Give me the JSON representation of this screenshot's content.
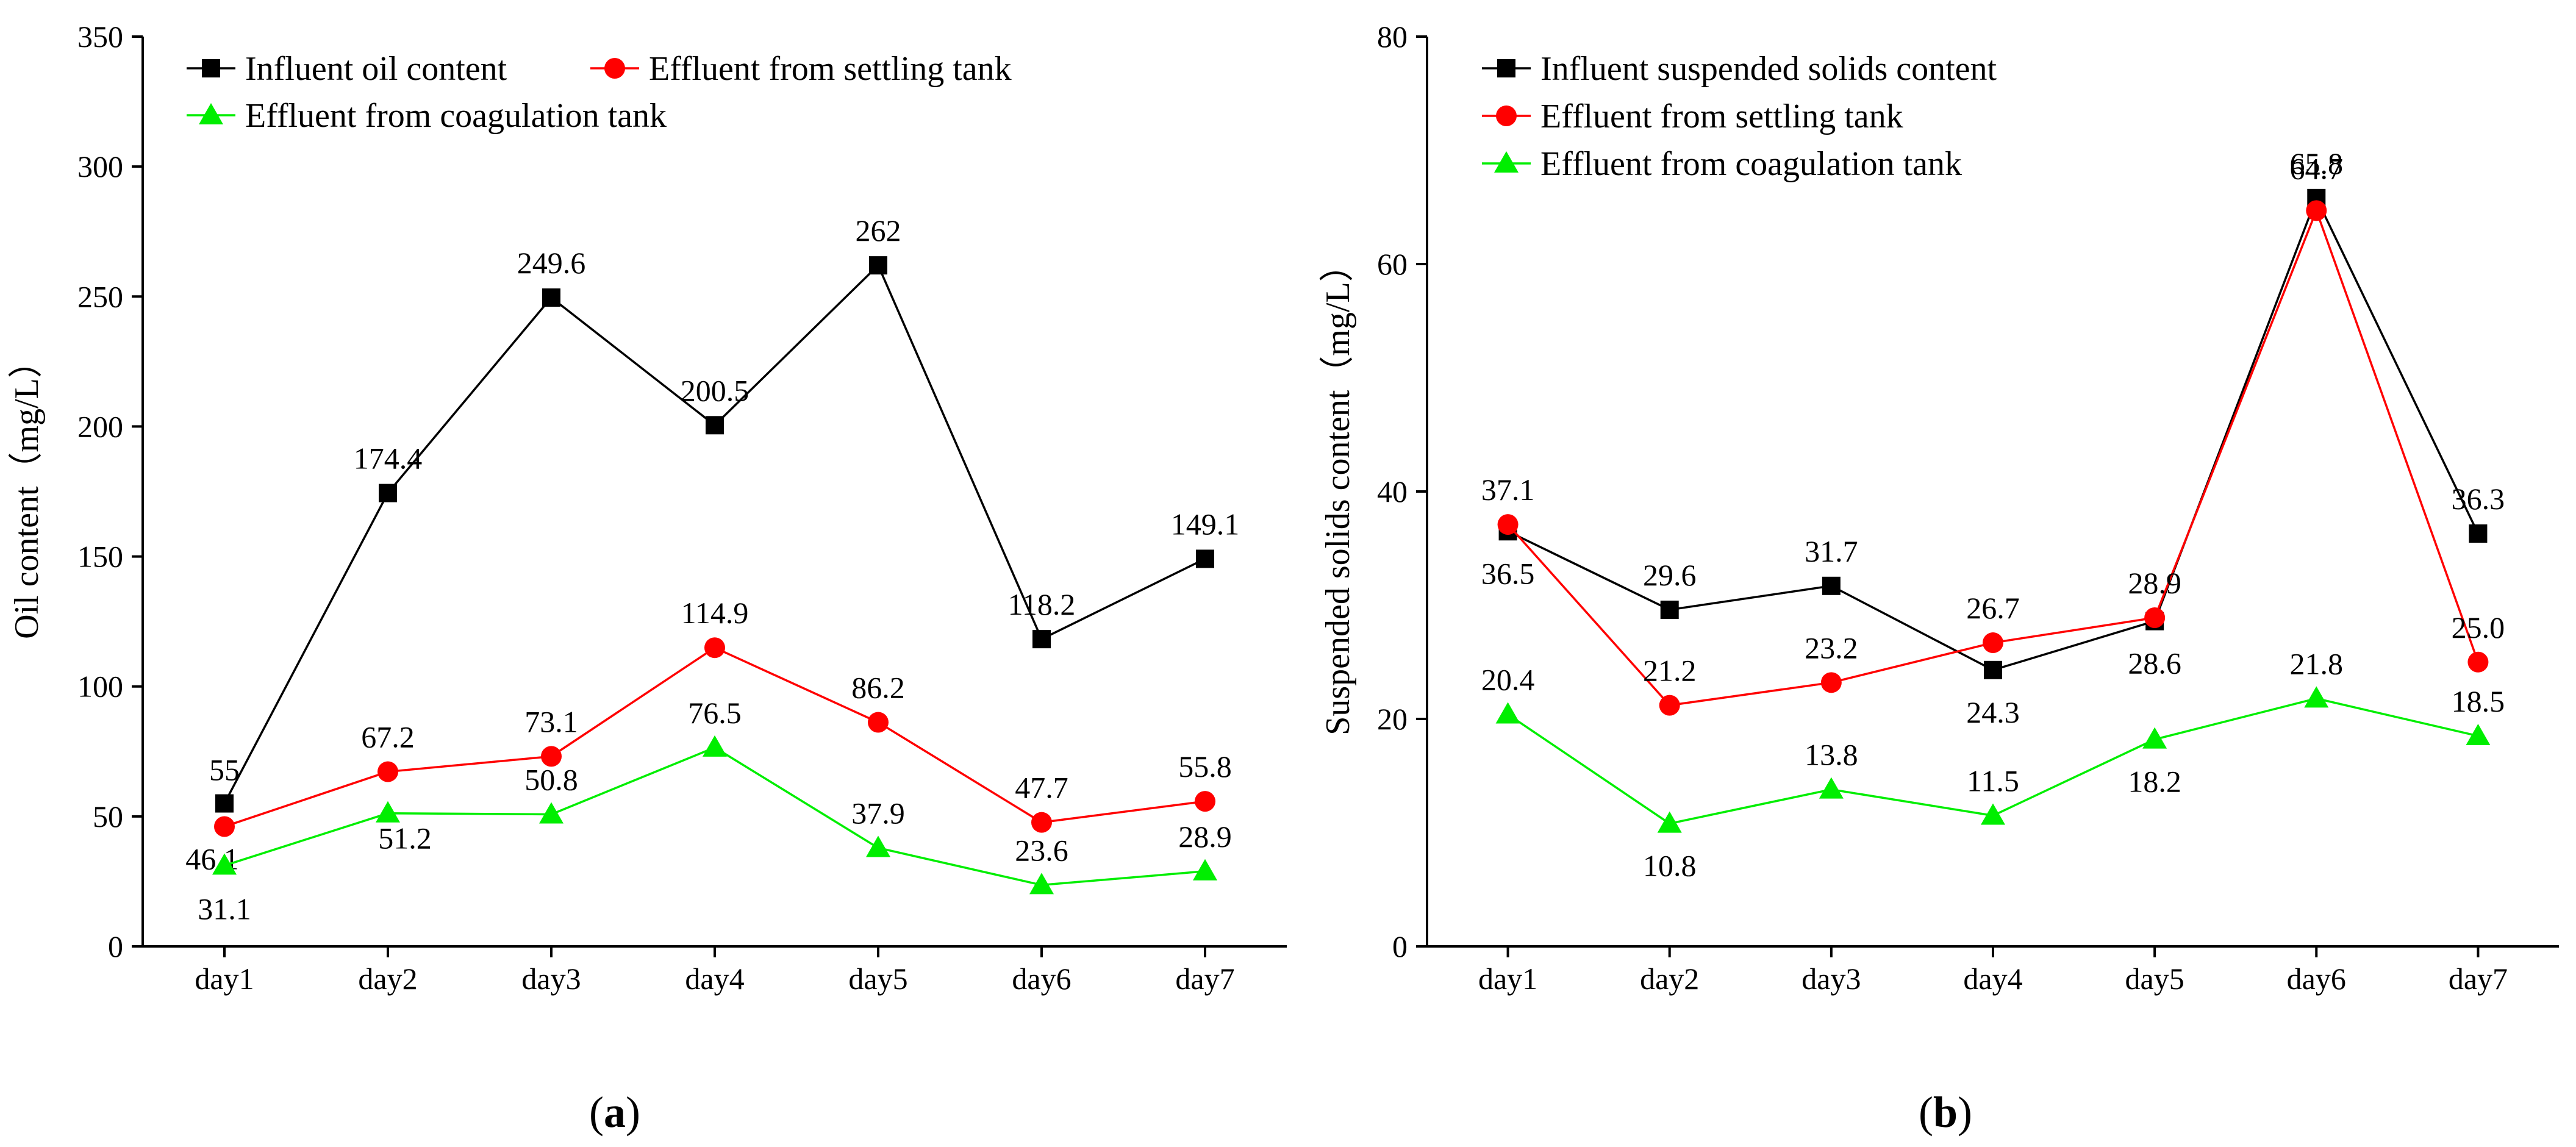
{
  "chart_data": [
    {
      "type": "line",
      "panel_label": "a",
      "title": "",
      "xlabel": "",
      "ylabel": "Oil content（mg/L）",
      "categories": [
        "day1",
        "day2",
        "day3",
        "day4",
        "day5",
        "day6",
        "day7"
      ],
      "ylim": [
        0,
        350
      ],
      "yticks": [
        0,
        50,
        100,
        150,
        200,
        250,
        300,
        350
      ],
      "grid": false,
      "legend": "top-left, inside plot",
      "series": [
        {
          "name": "Influent oil content",
          "color": "#000000",
          "marker": "square",
          "values": [
            55,
            174.4,
            249.6,
            200.5,
            262,
            118.2,
            149.1
          ],
          "labels": [
            "55",
            "174.4",
            "249.6",
            "200.5",
            "262",
            "118.2",
            "149.1"
          ]
        },
        {
          "name": "Effluent from settling tank",
          "color": "#ff0000",
          "marker": "circle",
          "values": [
            46.1,
            67.2,
            73.1,
            114.9,
            86.2,
            47.7,
            55.8
          ],
          "labels": [
            "46.1",
            "67.2",
            "73.1",
            "114.9",
            "86.2",
            "47.7",
            "55.8"
          ]
        },
        {
          "name": "Effluent from coagulation tank",
          "color": "#00ee00",
          "marker": "triangle",
          "values": [
            31.1,
            51.2,
            50.8,
            76.5,
            37.9,
            23.6,
            28.9
          ],
          "labels": [
            "31.1",
            "51.2",
            "50.8",
            "76.5",
            "37.9",
            "23.6",
            "28.9"
          ]
        }
      ]
    },
    {
      "type": "line",
      "panel_label": "b",
      "title": "",
      "xlabel": "",
      "ylabel": "Suspended solids content（mg/L）",
      "categories": [
        "day1",
        "day2",
        "day3",
        "day4",
        "day5",
        "day6",
        "day7"
      ],
      "ylim": [
        0,
        80
      ],
      "yticks": [
        0,
        20,
        40,
        60,
        80
      ],
      "grid": false,
      "legend": "top-left, inside plot",
      "series": [
        {
          "name": "Influent suspended solids content",
          "color": "#000000",
          "marker": "square",
          "values": [
            36.5,
            29.6,
            31.7,
            24.3,
            28.6,
            65.8,
            36.3
          ],
          "labels": [
            "36.5",
            "29.6",
            "31.7",
            "24.3",
            "28.6",
            "65.8",
            "36.3"
          ]
        },
        {
          "name": "Effluent from settling tank",
          "color": "#ff0000",
          "marker": "circle",
          "values": [
            37.1,
            21.2,
            23.2,
            26.7,
            28.9,
            64.7,
            25.0
          ],
          "labels": [
            "37.1",
            "21.2",
            "23.2",
            "26.7",
            "28.9",
            "64.7",
            "25.0"
          ]
        },
        {
          "name": "Effluent from coagulation tank",
          "color": "#00ee00",
          "marker": "triangle",
          "values": [
            20.4,
            10.8,
            13.8,
            11.5,
            18.2,
            21.8,
            18.5
          ],
          "labels": [
            "20.4",
            "10.8",
            "13.8",
            "11.5",
            "18.2",
            "21.8",
            "18.5"
          ]
        }
      ]
    }
  ]
}
